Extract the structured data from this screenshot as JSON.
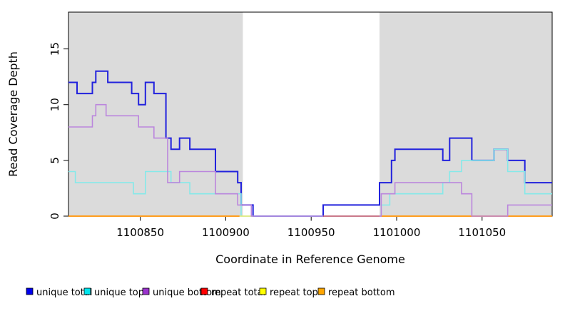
{
  "figure": {
    "background": "#ffffff",
    "panel_color": "#dbdbdb",
    "axis_color": "#000000"
  },
  "chart_data": {
    "type": "line",
    "subtype": "step-post",
    "title": "",
    "xlabel": "Coordinate in Reference Genome",
    "ylabel": "Read Coverage Depth",
    "xlim": [
      1100808,
      1101091
    ],
    "ylim": [
      0,
      18.3
    ],
    "xticks": [
      1100850,
      1100900,
      1100950,
      1101000,
      1101050
    ],
    "yticks": [
      0,
      5,
      10,
      15
    ],
    "grid": false,
    "legend_position": "bottom",
    "shaded_regions": [
      {
        "x0": 1100808,
        "x1": 1100910
      },
      {
        "x0": 1100990,
        "x1": 1101091
      }
    ],
    "legend": [
      {
        "label": "unique total",
        "color": "#0000ee"
      },
      {
        "label": "unique top",
        "color": "#00e5ee"
      },
      {
        "label": "unique bottom",
        "color": "#9932cc"
      },
      {
        "label": "repeat total",
        "color": "#ff0000"
      },
      {
        "label": "repeat top",
        "color": "#ffff00"
      },
      {
        "label": "repeat bottom",
        "color": "#ffa500"
      }
    ],
    "series": [
      {
        "name": "unique total",
        "color": "#2222dd",
        "width": 2,
        "x": [
          1100808,
          1100813,
          1100822,
          1100824,
          1100831,
          1100845,
          1100849,
          1100853,
          1100858,
          1100865,
          1100868,
          1100873,
          1100879,
          1100894,
          1100907,
          1100909,
          1100916,
          1100957,
          1100990,
          1100997,
          1100999,
          1101027,
          1101031,
          1101044,
          1101057,
          1101065,
          1101075,
          1101091
        ],
        "v": [
          12,
          11,
          12,
          13,
          12,
          11,
          10,
          12,
          11,
          7,
          6,
          7,
          6,
          4,
          3,
          1,
          0,
          1,
          3,
          5,
          6,
          5,
          7,
          5,
          6,
          5,
          3
        ]
      },
      {
        "name": "unique top",
        "color": "#85e9e9",
        "width": 1.6,
        "x": [
          1100808,
          1100812,
          1100846,
          1100853,
          1100868,
          1100879,
          1100909,
          1100991,
          1100996,
          1101027,
          1101031,
          1101038,
          1101057,
          1101065,
          1101075,
          1101091
        ],
        "v": [
          4,
          3,
          2,
          4,
          3,
          2,
          0,
          1,
          2,
          3,
          4,
          5,
          6,
          4,
          2
        ]
      },
      {
        "name": "repeat top",
        "color": "#e9e96a",
        "width": 1.6,
        "x": [
          1100908,
          1100916
        ],
        "v": [
          0
        ]
      },
      {
        "name": "repeat total",
        "color": "#cc5066",
        "width": 1.6,
        "x": [
          1100957,
          1101091
        ],
        "v": [
          0
        ]
      },
      {
        "name": "repeat bottom",
        "color": "#ff9d1e",
        "width": 2,
        "x": [
          1100808,
          1100908
        ],
        "v": [
          0
        ]
      },
      {
        "name": "repeat bottom",
        "color": "#ff9d1e",
        "width": 2,
        "x": [
          1100991,
          1101091
        ],
        "v": [
          0
        ]
      },
      {
        "name": "unique bottom",
        "color": "#bb86dd",
        "width": 1.6,
        "x": [
          1100808,
          1100822,
          1100824,
          1100830,
          1100849,
          1100858,
          1100866,
          1100873,
          1100894,
          1100907,
          1100915,
          1100957
        ],
        "v": [
          8,
          9,
          10,
          9,
          8,
          7,
          3,
          4,
          2,
          1,
          0
        ]
      },
      {
        "name": "unique bottom",
        "color": "#bb86dd",
        "width": 1.6,
        "x": [
          1100990,
          1100991,
          1100999,
          1101038,
          1101044,
          1101065,
          1101091
        ],
        "v": [
          0,
          2,
          3,
          2,
          0,
          1
        ]
      }
    ]
  }
}
